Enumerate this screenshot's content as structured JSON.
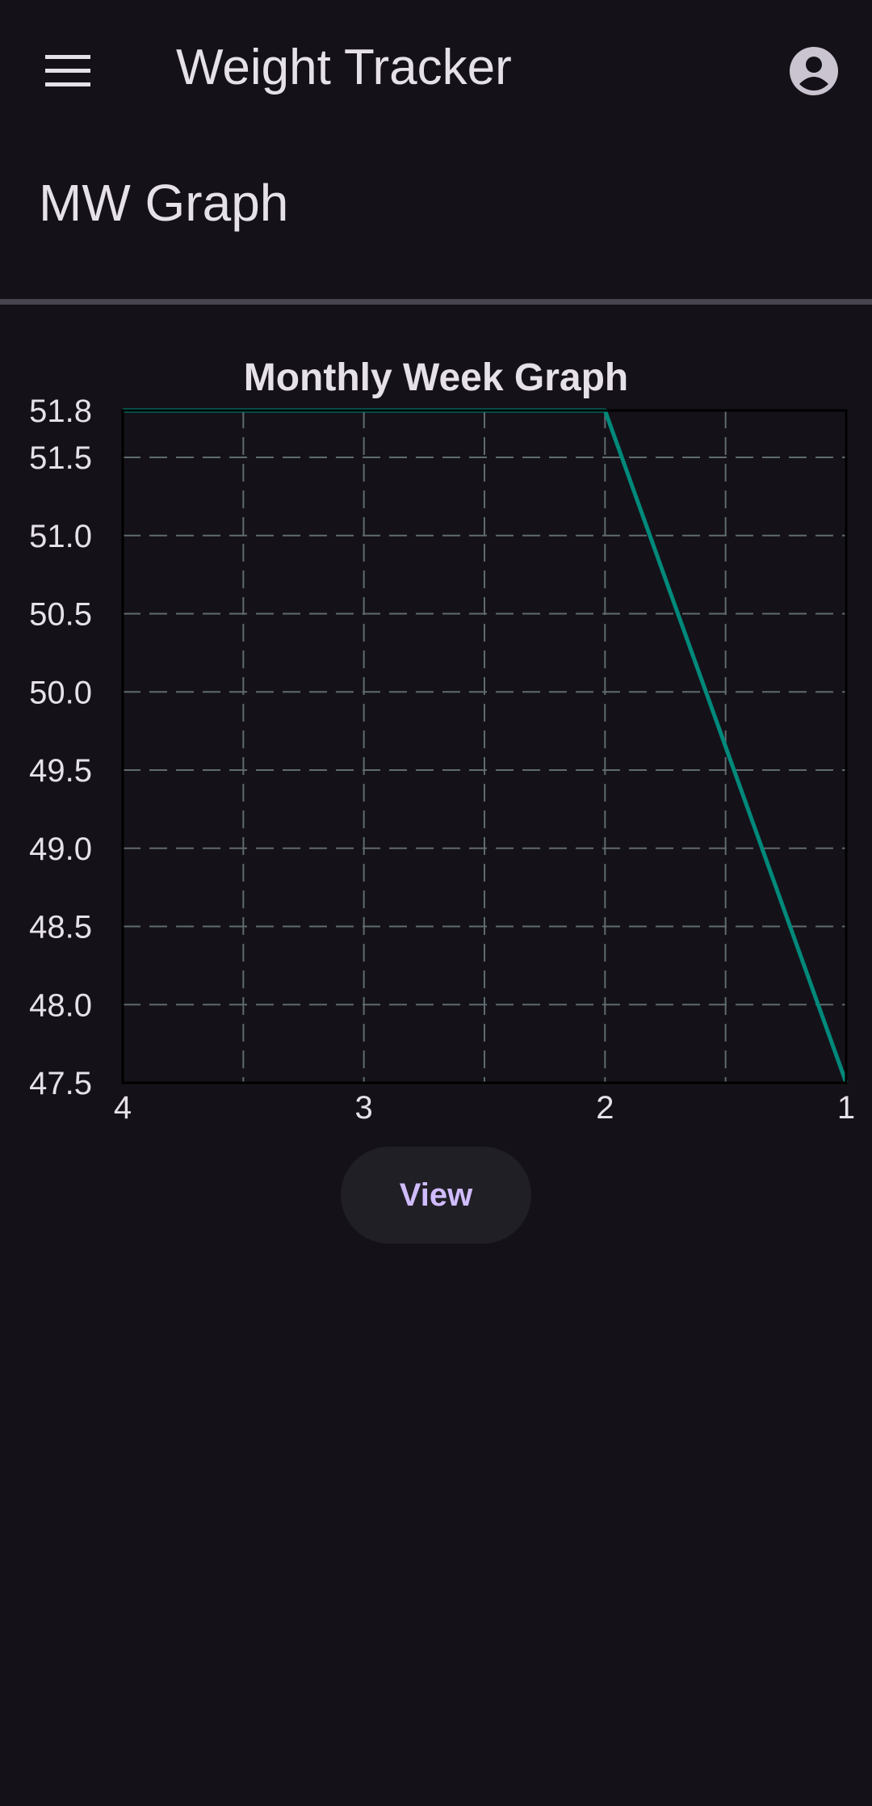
{
  "app_bar": {
    "title": "Weight Tracker",
    "menu_icon": "menu-icon",
    "account_icon": "account-circle-icon"
  },
  "page": {
    "title": "MW Graph"
  },
  "chart_data": {
    "type": "line",
    "title": "Monthly Week Graph",
    "xlabel": "",
    "ylabel": "",
    "x_ticks": [
      "4",
      "3",
      "2",
      "1"
    ],
    "y_ticks": [
      "51.8",
      "51.5",
      "51.0",
      "50.5",
      "50.0",
      "49.5",
      "49.0",
      "48.5",
      "48.0",
      "47.5"
    ],
    "x_axis_direction": "reversed",
    "xlim": [
      4,
      1
    ],
    "ylim": [
      47.5,
      51.8
    ],
    "grid": true,
    "series": [
      {
        "x": [
          4,
          2,
          1
        ],
        "y": [
          51.8,
          51.8,
          47.5
        ],
        "color": "#00897b"
      }
    ]
  },
  "actions": {
    "view_label": "View"
  },
  "colors": {
    "background": "#141218",
    "text": "#e6e0e9",
    "accent": "#d0bcff",
    "line": "#00897b",
    "grid": "#5f6b70"
  }
}
